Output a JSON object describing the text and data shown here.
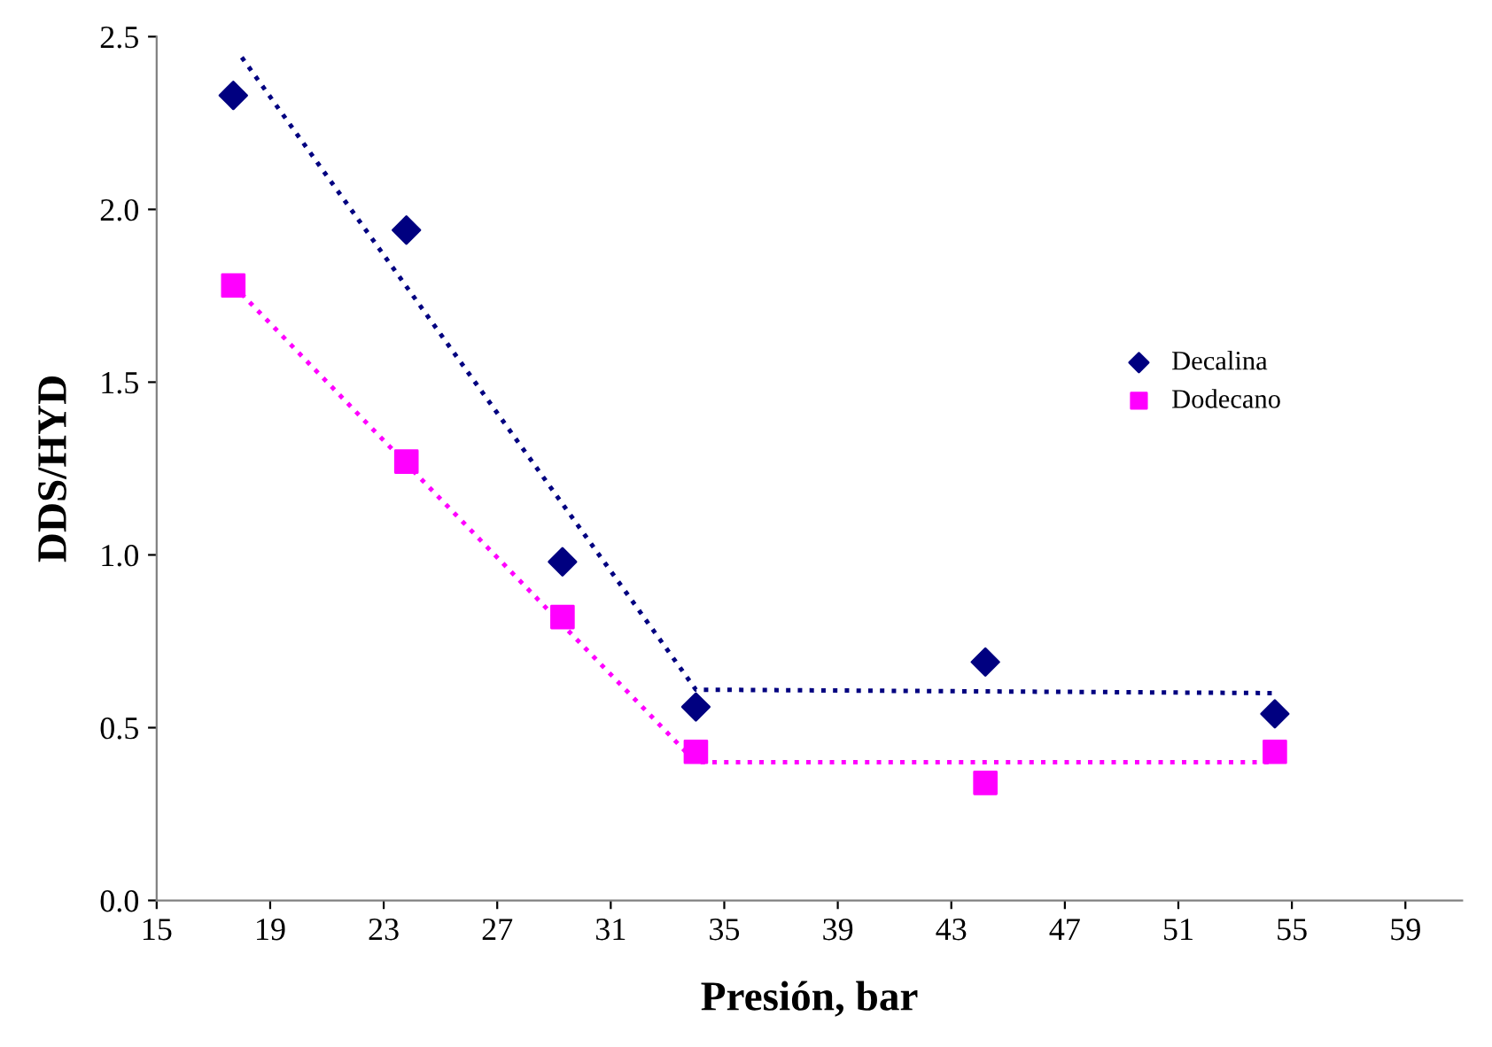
{
  "chart_data": {
    "type": "scatter",
    "xlabel": "Presión, bar",
    "ylabel": "DDS/HYD",
    "x": [
      17.7,
      23.8,
      29.3,
      34.0,
      44.2,
      54.4
    ],
    "series": [
      {
        "name": "Decalina",
        "color": "#000080",
        "marker": "diamond",
        "values": [
          2.33,
          1.94,
          0.98,
          0.56,
          0.69,
          0.54
        ]
      },
      {
        "name": "Dodecano",
        "color": "#ff00ff",
        "marker": "square",
        "values": [
          1.78,
          1.27,
          0.82,
          0.43,
          0.34,
          0.43
        ]
      },
      {
        "type": "line",
        "color": "#000080",
        "line_style": "dotted",
        "x": [
          18.0,
          34.0,
          54.4
        ],
        "values": [
          2.44,
          0.61,
          0.6
        ]
      },
      {
        "type": "line",
        "color": "#ff00ff",
        "line_style": "dotted",
        "x": [
          17.7,
          34.0,
          54.4
        ],
        "values": [
          1.78,
          0.4,
          0.4
        ]
      }
    ],
    "xlim": [
      15,
      61
    ],
    "xticks": [
      15,
      19,
      23,
      27,
      31,
      35,
      39,
      43,
      47,
      51,
      55,
      59
    ],
    "ylim": [
      0,
      2.5
    ],
    "yticks": [
      {
        "value": 0,
        "label": "0.0"
      },
      {
        "value": 0.5,
        "label": "0.5"
      },
      {
        "value": 1.0,
        "label": "1.0"
      },
      {
        "value": 1.5,
        "label": "1.5"
      },
      {
        "value": 2.0,
        "label": "2.0"
      },
      {
        "value": 2.5,
        "label": "2.5"
      }
    ],
    "grid": false,
    "legend": "right"
  }
}
